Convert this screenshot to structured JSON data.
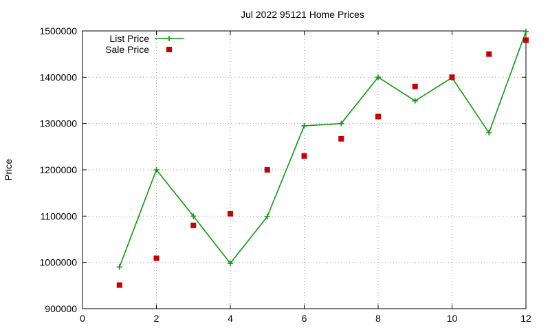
{
  "chart_data": {
    "type": "line",
    "title": "Jul 2022 95121 Home Prices",
    "xlabel": "",
    "ylabel": "Price",
    "xlim": [
      0,
      12
    ],
    "ylim": [
      900000,
      1500000
    ],
    "x_ticks": [
      0,
      2,
      4,
      6,
      8,
      10,
      12
    ],
    "y_ticks": [
      900000,
      1000000,
      1100000,
      1200000,
      1300000,
      1400000,
      1500000
    ],
    "grid": true,
    "legend_position": "top-left",
    "series": [
      {
        "name": "List Price",
        "style": "linespoints",
        "marker": "plus",
        "color": "#0a9a0a",
        "x": [
          1,
          2,
          3,
          4,
          5,
          6,
          7,
          8,
          9,
          10,
          11,
          12
        ],
        "values": [
          990000,
          1200000,
          1100000,
          998000,
          1099000,
          1295000,
          1300000,
          1400000,
          1349000,
          1399000,
          1280000,
          1499000
        ]
      },
      {
        "name": "Sale Price",
        "style": "points",
        "marker": "square",
        "color": "#c80000",
        "x": [
          1,
          2,
          3,
          4,
          5,
          6,
          7,
          8,
          9,
          10,
          11,
          12
        ],
        "values": [
          951000,
          1009000,
          1080000,
          1105000,
          1200000,
          1230000,
          1267000,
          1315000,
          1380000,
          1400000,
          1450000,
          1480000
        ]
      }
    ]
  }
}
